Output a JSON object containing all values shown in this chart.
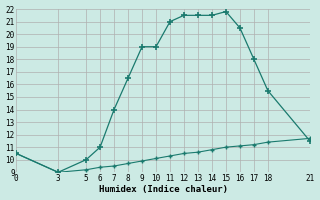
{
  "xlabel": "Humidex (Indice chaleur)",
  "bg_color": "#cceae4",
  "grid_color": "#b0b0b0",
  "line_color": "#1a7a6e",
  "upper_x": [
    0,
    3,
    5,
    6,
    7,
    8,
    9,
    10,
    11,
    12,
    13,
    14,
    15,
    16,
    17,
    18,
    21
  ],
  "upper_y": [
    10.5,
    9.0,
    10.0,
    11.0,
    14.0,
    16.5,
    19.0,
    19.0,
    21.0,
    21.5,
    21.5,
    21.5,
    21.8,
    20.5,
    18.0,
    15.5,
    11.5
  ],
  "lower_x": [
    0,
    3,
    5,
    6,
    7,
    8,
    9,
    10,
    11,
    12,
    13,
    14,
    15,
    16,
    17,
    18,
    21
  ],
  "lower_y": [
    10.5,
    9.0,
    9.2,
    9.4,
    9.5,
    9.7,
    9.9,
    10.1,
    10.3,
    10.5,
    10.6,
    10.8,
    11.0,
    11.1,
    11.2,
    11.4,
    11.7
  ],
  "xlim": [
    0,
    21
  ],
  "ylim": [
    9,
    22
  ],
  "xticks": [
    0,
    3,
    5,
    6,
    7,
    8,
    9,
    10,
    11,
    12,
    13,
    14,
    15,
    16,
    17,
    18,
    21
  ],
  "yticks": [
    9,
    10,
    11,
    12,
    13,
    14,
    15,
    16,
    17,
    18,
    19,
    20,
    21,
    22
  ],
  "tick_fontsize": 5.5,
  "xlabel_fontsize": 6.5,
  "font_family": "monospace"
}
